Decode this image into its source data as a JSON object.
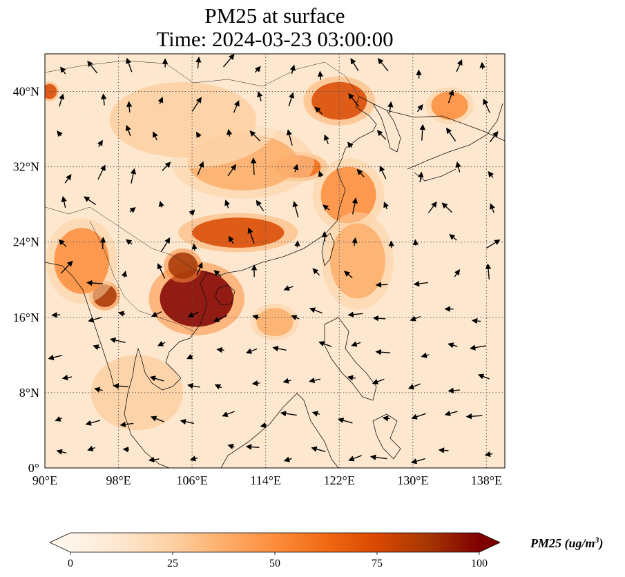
{
  "title_line1": "PM25 at surface",
  "title_line2": "Time: 2024-03-23 03:00:00",
  "map": {
    "lon_range": [
      90,
      140
    ],
    "lat_range": [
      0,
      44
    ],
    "lon_ticks": [
      {
        "value": 90,
        "label": "90°E"
      },
      {
        "value": 98,
        "label": "98°E"
      },
      {
        "value": 106,
        "label": "106°E"
      },
      {
        "value": 114,
        "label": "114°E"
      },
      {
        "value": 122,
        "label": "122°E"
      },
      {
        "value": 130,
        "label": "130°E"
      },
      {
        "value": 138,
        "label": "138°E"
      }
    ],
    "lat_ticks": [
      {
        "value": 0,
        "label": "0°"
      },
      {
        "value": 8,
        "label": "8°N"
      },
      {
        "value": 16,
        "label": "16°N"
      },
      {
        "value": 24,
        "label": "24°N"
      },
      {
        "value": 32,
        "label": "32°N"
      },
      {
        "value": 40,
        "label": "40°N"
      }
    ],
    "gridlines": "dotted",
    "hotspots": [
      {
        "lon": 106.5,
        "lat": 18.0,
        "rx": 4.0,
        "ry": 3.0,
        "level": 95
      },
      {
        "lon": 105.0,
        "lat": 21.5,
        "rx": 1.6,
        "ry": 1.4,
        "level": 85
      },
      {
        "lon": 96.5,
        "lat": 18.3,
        "rx": 1.3,
        "ry": 1.2,
        "level": 88
      },
      {
        "lon": 111.0,
        "lat": 25.0,
        "rx": 5.0,
        "ry": 1.6,
        "level": 75
      },
      {
        "lon": 117.5,
        "lat": 32.0,
        "rx": 2.5,
        "ry": 1.2,
        "level": 65
      },
      {
        "lon": 122.0,
        "lat": 39.0,
        "rx": 3.0,
        "ry": 2.0,
        "level": 70
      },
      {
        "lon": 90.5,
        "lat": 40.0,
        "rx": 0.8,
        "ry": 0.8,
        "level": 70
      },
      {
        "lon": 94.0,
        "lat": 22.0,
        "rx": 3.0,
        "ry": 3.5,
        "level": 55
      },
      {
        "lon": 111.5,
        "lat": 32.5,
        "rx": 6.0,
        "ry": 3.0,
        "level": 35
      },
      {
        "lon": 123.0,
        "lat": 29.0,
        "rx": 3.0,
        "ry": 3.0,
        "level": 45
      },
      {
        "lon": 115.0,
        "lat": 15.5,
        "rx": 2.0,
        "ry": 1.5,
        "level": 40
      },
      {
        "lon": 100.0,
        "lat": 8.0,
        "rx": 5.0,
        "ry": 4.0,
        "level": 30
      },
      {
        "lon": 134.0,
        "lat": 38.5,
        "rx": 2.0,
        "ry": 1.5,
        "level": 45
      },
      {
        "lon": 124.0,
        "lat": 22.0,
        "rx": 3.0,
        "ry": 4.0,
        "level": 40
      },
      {
        "lon": 105.0,
        "lat": 37.0,
        "rx": 8.0,
        "ry": 4.0,
        "level": 22
      }
    ]
  },
  "colorbar": {
    "label": "PM25 (ug/m",
    "label_exp": "3",
    "label_close": ")",
    "min": 0,
    "max": 100,
    "extend": "both",
    "ticks": [
      {
        "value": 0,
        "label": "0"
      },
      {
        "value": 25,
        "label": "25"
      },
      {
        "value": 50,
        "label": "50"
      },
      {
        "value": 75,
        "label": "75"
      },
      {
        "value": 100,
        "label": "100"
      }
    ],
    "colors": [
      "#fff5eb",
      "#fee6ce",
      "#fdd0a2",
      "#fdae6b",
      "#fd8d3c",
      "#f16913",
      "#d94801",
      "#a63603",
      "#7f0000"
    ]
  }
}
